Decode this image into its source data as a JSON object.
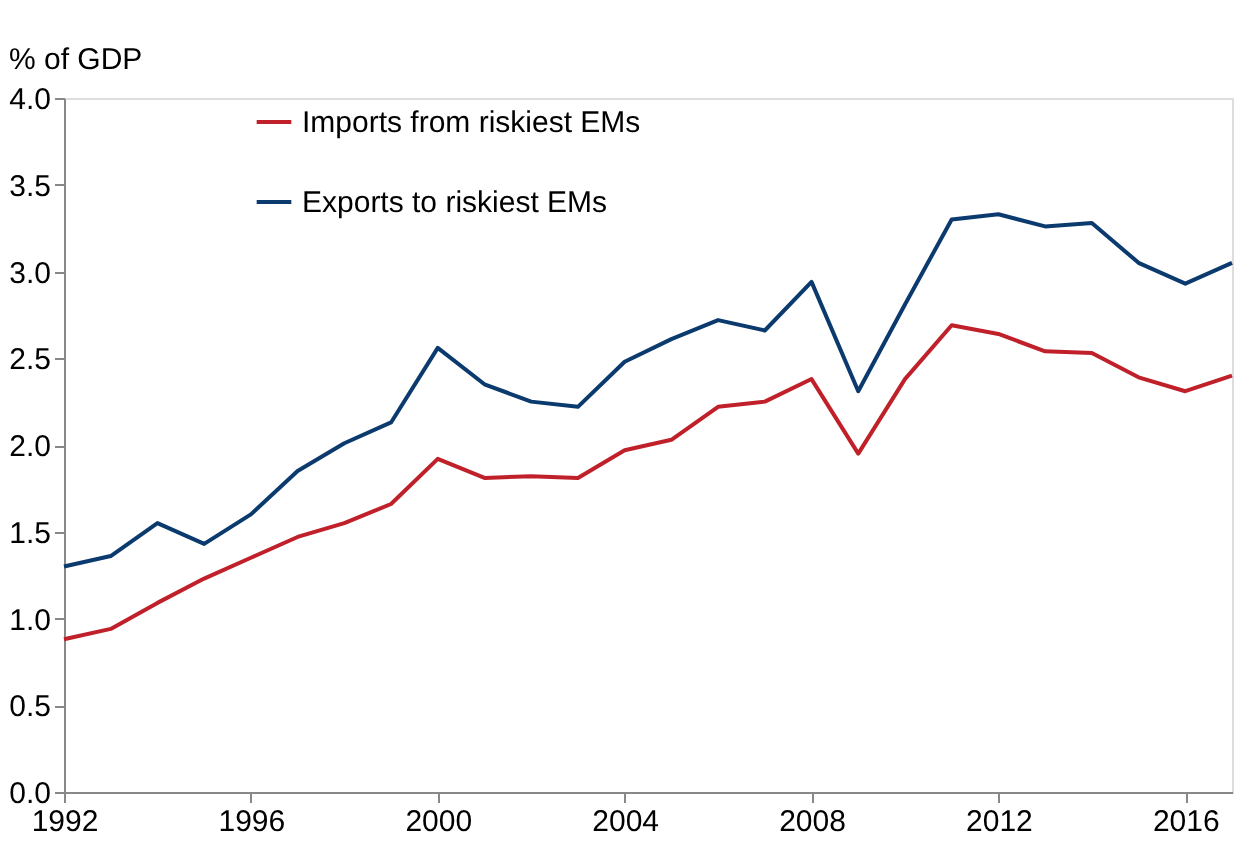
{
  "chart_data": {
    "type": "line",
    "ylabel": "% of GDP",
    "x": [
      1992,
      1993,
      1994,
      1995,
      1996,
      1997,
      1998,
      1999,
      2000,
      2001,
      2002,
      2003,
      2004,
      2005,
      2006,
      2007,
      2008,
      2009,
      2010,
      2011,
      2012,
      2013,
      2014,
      2015,
      2016,
      2017
    ],
    "series": [
      {
        "name": "Imports from riskiest EMs",
        "color": "#c0202a",
        "values": [
          0.88,
          0.94,
          1.09,
          1.23,
          1.35,
          1.47,
          1.55,
          1.66,
          1.92,
          1.81,
          1.82,
          1.81,
          1.97,
          2.03,
          2.22,
          2.25,
          2.38,
          1.95,
          2.38,
          2.69,
          2.64,
          2.54,
          2.53,
          2.39,
          2.31,
          2.4
        ]
      },
      {
        "name": "Exports to riskiest EMs",
        "color": "#0b3a6e",
        "values": [
          1.3,
          1.36,
          1.55,
          1.43,
          1.6,
          1.85,
          2.01,
          2.13,
          2.56,
          2.35,
          2.25,
          2.22,
          2.48,
          2.61,
          2.72,
          2.66,
          2.94,
          2.31,
          2.81,
          3.3,
          3.33,
          3.26,
          3.28,
          3.05,
          2.93,
          3.05
        ]
      }
    ],
    "xlim": [
      1992,
      2017
    ],
    "xticks": [
      1992,
      1996,
      2000,
      2004,
      2008,
      2012,
      2016
    ],
    "ylim": [
      0,
      4
    ],
    "yticks": [
      {
        "value": 0,
        "label": "0.0"
      },
      0.5,
      {
        "value": 1,
        "label": "1.0"
      },
      1.5,
      {
        "value": 2,
        "label": "2.0"
      },
      2.5,
      {
        "value": 3,
        "label": "3.0"
      },
      3.5,
      {
        "value": 4,
        "label": "4.0"
      }
    ],
    "grid": false,
    "legend": "top left",
    "marker": "none",
    "line_style": "solid"
  }
}
